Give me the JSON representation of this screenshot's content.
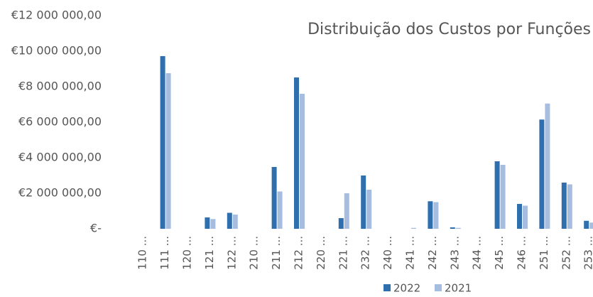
{
  "chart_data": {
    "type": "bar",
    "title": "Distribuição dos Custos por Funções",
    "categories": [
      "110 ...",
      "111 ...",
      "120 ...",
      "121 ...",
      "122 ...",
      "210 ...",
      "211 ...",
      "212 ...",
      "220 ...",
      "221 ...",
      "232 ...",
      "240 ...",
      "241 ...",
      "242 ...",
      "243 ...",
      "244 ...",
      "245 ...",
      "246 ...",
      "251 ...",
      "252 ...",
      "253 ..."
    ],
    "series": [
      {
        "name": "2022",
        "color": "#2f6fad",
        "values": [
          0,
          9720000,
          0,
          640000,
          900000,
          0,
          3480000,
          8520000,
          0,
          600000,
          3000000,
          0,
          0,
          1550000,
          80000,
          0,
          3800000,
          1400000,
          6150000,
          2600000,
          450000
        ]
      },
      {
        "name": "2021",
        "color": "#a6bde0",
        "values": [
          0,
          8760000,
          0,
          550000,
          800000,
          0,
          2100000,
          7600000,
          0,
          2000000,
          2200000,
          0,
          50000,
          1500000,
          50000,
          0,
          3600000,
          1300000,
          7050000,
          2500000,
          350000
        ]
      }
    ],
    "ylim": [
      0,
      12000000
    ],
    "yticks": [
      {
        "value": 0,
        "label": "€-"
      },
      {
        "value": 2000000,
        "label": "€2 000 000,00"
      },
      {
        "value": 4000000,
        "label": "€4 000 000,00"
      },
      {
        "value": 6000000,
        "label": "€6 000 000,00"
      },
      {
        "value": 8000000,
        "label": "€8 000 000,00"
      },
      {
        "value": 10000000,
        "label": "€10 000 000,00"
      },
      {
        "value": 12000000,
        "label": "€12 000 000,00"
      }
    ],
    "grid": false,
    "legend": "bottom"
  }
}
